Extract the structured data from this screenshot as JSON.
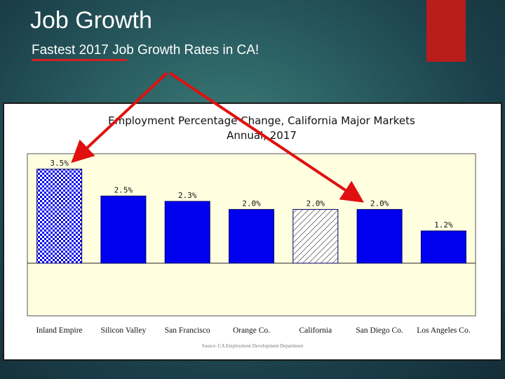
{
  "slide": {
    "title": "Job Growth",
    "subtitle": "Fastest 2017 Job Growth Rates in CA!"
  },
  "colors": {
    "background": "#1b3f49",
    "accent": "#b81d1b",
    "plot_background": "#ffffe0",
    "bar_fill": "#0000ee",
    "arrow": "#e01010"
  },
  "chart_data": {
    "type": "bar",
    "title": "Employment Percentage Change, California Major Markets",
    "subtitle": "Annual, 2017",
    "categories": [
      "Inland Empire",
      "Silicon Valley",
      "San Francisco",
      "Orange Co.",
      "California",
      "San Diego Co.",
      "Los Angeles Co."
    ],
    "values": [
      3.5,
      2.5,
      2.3,
      2.0,
      2.0,
      2.0,
      1.2
    ],
    "value_labels": [
      "3.5%",
      "2.5%",
      "2.3%",
      "2.0%",
      "2.0%",
      "2.0%",
      "1.2%"
    ],
    "bar_styles": [
      "checkered",
      "solid",
      "solid",
      "solid",
      "hatched",
      "solid",
      "solid"
    ],
    "source": "Source: CA Employment Development Department",
    "ylim": [
      -2.1,
      4.1
    ],
    "grid": false,
    "legend": "none"
  }
}
